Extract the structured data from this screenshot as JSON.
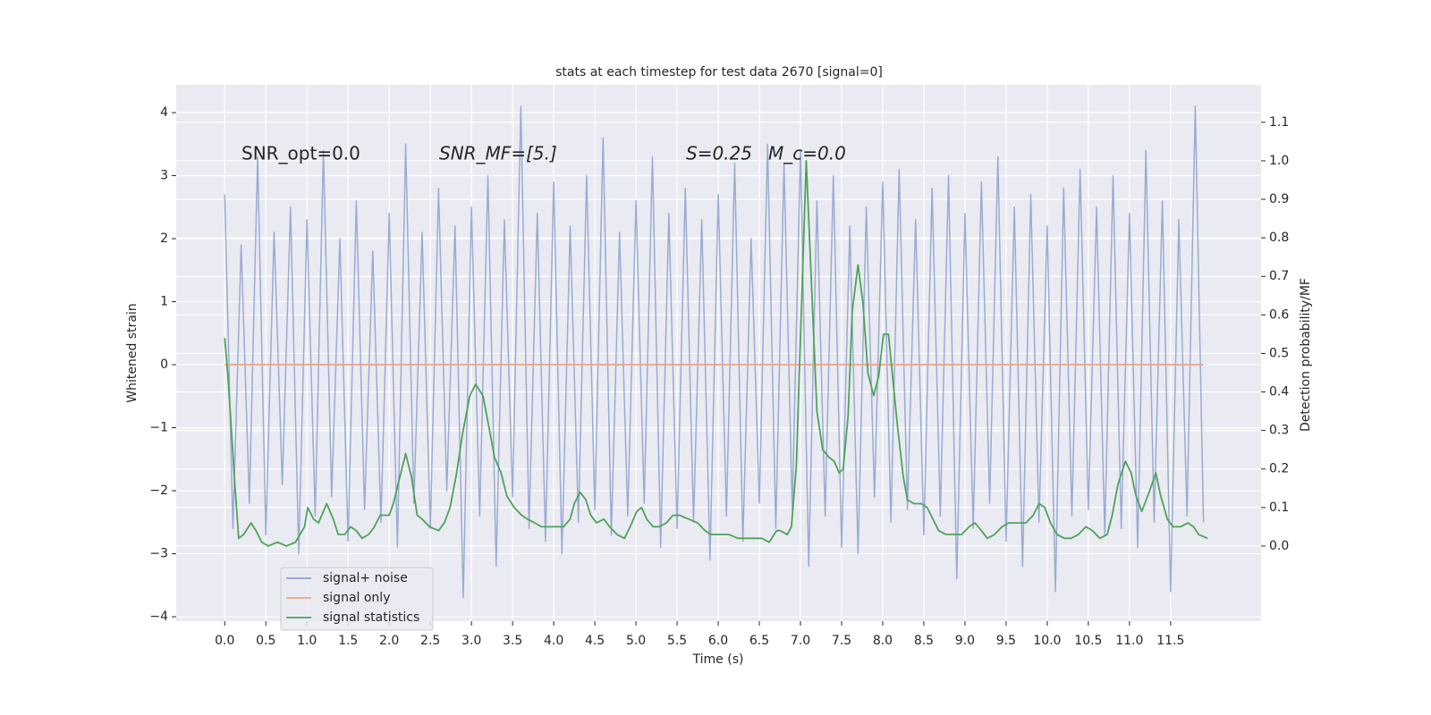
{
  "chart_data": {
    "type": "line",
    "title": "stats at each timestep for test data 2670 [signal=0]",
    "xlabel": "Time (s)",
    "ylabel": "Whitened strain",
    "y2label": "Detection probability/MF",
    "annotations": [
      "SNR_opt=0.0",
      "SNR_MF=[5.]",
      "S=0.25",
      "M_c=0.0"
    ],
    "xlim": [
      -0.59,
      12.6
    ],
    "ylim": [
      -4.07,
      4.44
    ],
    "y2lim": [
      -0.195,
      1.197
    ],
    "xticks": [
      0.0,
      0.5,
      1.0,
      1.5,
      2.0,
      2.5,
      3.0,
      3.5,
      4.0,
      4.5,
      5.0,
      5.5,
      6.0,
      6.5,
      7.0,
      7.5,
      8.0,
      8.5,
      9.0,
      9.5,
      10.0,
      10.5,
      11.0,
      11.5
    ],
    "yticks": [
      -4,
      -3,
      -2,
      -1,
      0,
      1,
      2,
      3,
      4
    ],
    "y2ticks": [
      0.0,
      0.1,
      0.2,
      0.3,
      0.4,
      0.5,
      0.6,
      0.7,
      0.8,
      0.9,
      1.0,
      1.1
    ],
    "grid": true,
    "legend": "lower left",
    "series": [
      {
        "name": "signal+ noise",
        "color": "#8da0cb",
        "x": [
          0.0,
          0.1,
          0.2,
          0.3,
          0.4,
          0.5,
          0.6,
          0.7,
          0.8,
          0.9,
          1.0,
          1.1,
          1.2,
          1.3,
          1.4,
          1.5,
          1.6,
          1.7,
          1.8,
          1.9,
          2.0,
          2.1,
          2.2,
          2.3,
          2.4,
          2.5,
          2.6,
          2.7,
          2.8,
          2.9,
          3.0,
          3.1,
          3.2,
          3.3,
          3.4,
          3.5,
          3.6,
          3.7,
          3.8,
          3.9,
          4.0,
          4.1,
          4.2,
          4.3,
          4.4,
          4.5,
          4.6,
          4.7,
          4.8,
          4.9,
          5.0,
          5.1,
          5.2,
          5.3,
          5.4,
          5.5,
          5.6,
          5.7,
          5.8,
          5.9,
          6.0,
          6.1,
          6.2,
          6.3,
          6.4,
          6.5,
          6.6,
          6.7,
          6.8,
          6.9,
          7.0,
          7.1,
          7.2,
          7.3,
          7.4,
          7.5,
          7.6,
          7.7,
          7.8,
          7.9,
          8.0,
          8.1,
          8.2,
          8.3,
          8.4,
          8.5,
          8.6,
          8.7,
          8.8,
          8.9,
          9.0,
          9.1,
          9.2,
          9.3,
          9.4,
          9.5,
          9.6,
          9.7,
          9.8,
          9.9,
          10.0,
          10.1,
          10.2,
          10.3,
          10.4,
          10.5,
          10.6,
          10.7,
          10.8,
          10.9,
          11.0,
          11.1,
          11.2,
          11.3,
          11.4,
          11.5,
          11.6,
          11.7,
          11.8,
          11.9
        ],
        "values": [
          2.7,
          -2.6,
          1.9,
          -2.2,
          3.3,
          -2.7,
          2.1,
          -1.9,
          2.5,
          -3.0,
          2.3,
          -2.4,
          3.4,
          -2.1,
          2.0,
          -2.8,
          2.6,
          -2.3,
          1.8,
          -2.5,
          2.4,
          -2.9,
          3.5,
          -2.2,
          2.1,
          -2.6,
          2.8,
          -2.0,
          2.2,
          -3.7,
          2.5,
          -2.4,
          3.0,
          -3.2,
          2.3,
          -2.1,
          4.1,
          -2.6,
          2.4,
          -2.8,
          2.9,
          -3.0,
          2.2,
          -2.5,
          3.0,
          -2.3,
          3.6,
          -2.7,
          2.1,
          -2.4,
          2.6,
          -2.2,
          3.3,
          -2.9,
          2.4,
          -2.6,
          2.8,
          -2.5,
          2.3,
          -3.1,
          2.7,
          -2.4,
          3.2,
          -2.8,
          2.0,
          -2.2,
          3.5,
          -2.6,
          3.2,
          -2.3,
          3.4,
          -3.2,
          2.6,
          -2.4,
          3.0,
          -2.9,
          2.2,
          -3.0,
          2.5,
          -2.1,
          2.9,
          -2.5,
          3.1,
          -2.3,
          2.3,
          -2.7,
          2.8,
          -2.4,
          3.0,
          -3.4,
          2.4,
          -2.6,
          2.9,
          -2.2,
          3.3,
          -2.8,
          2.5,
          -3.2,
          2.7,
          -2.5,
          2.2,
          -3.6,
          2.8,
          -2.4,
          3.1,
          -2.3,
          2.5,
          -2.7,
          3.0,
          -2.6,
          2.4,
          -2.9,
          3.4,
          -2.5,
          2.6,
          -3.6,
          2.3,
          -2.4,
          4.1,
          -2.5
        ]
      },
      {
        "name": "signal only",
        "color": "#e9a88a",
        "x": [
          0.0,
          11.9
        ],
        "values": [
          0,
          0
        ]
      },
      {
        "name": "signal statistics",
        "color": "#4ea35a",
        "axis": "y2",
        "x": [
          0.0,
          0.04,
          0.12,
          0.17,
          0.23,
          0.32,
          0.38,
          0.45,
          0.53,
          0.64,
          0.75,
          0.86,
          0.97,
          1.01,
          1.08,
          1.14,
          1.24,
          1.32,
          1.38,
          1.46,
          1.53,
          1.6,
          1.67,
          1.75,
          1.82,
          1.89,
          2.0,
          2.05,
          2.13,
          2.2,
          2.27,
          2.34,
          2.4,
          2.49,
          2.6,
          2.67,
          2.74,
          2.82,
          2.89,
          2.98,
          3.05,
          3.14,
          3.22,
          3.28,
          3.36,
          3.43,
          3.52,
          3.61,
          3.68,
          3.77,
          3.85,
          3.93,
          4.03,
          4.12,
          4.2,
          4.25,
          4.32,
          4.39,
          4.45,
          4.52,
          4.61,
          4.68,
          4.77,
          4.86,
          4.93,
          5.01,
          5.07,
          5.13,
          5.21,
          5.28,
          5.37,
          5.45,
          5.53,
          5.64,
          5.75,
          5.84,
          5.91,
          6.02,
          6.13,
          6.24,
          6.35,
          6.43,
          6.53,
          6.62,
          6.71,
          6.75,
          6.84,
          6.89,
          6.95,
          7.0,
          7.07,
          7.13,
          7.2,
          7.27,
          7.35,
          7.41,
          7.47,
          7.52,
          7.58,
          7.63,
          7.7,
          7.76,
          7.82,
          7.89,
          7.95,
          8.01,
          8.07,
          8.12,
          8.18,
          8.25,
          8.3,
          8.38,
          8.47,
          8.54,
          8.61,
          8.68,
          8.77,
          8.86,
          8.96,
          9.05,
          9.12,
          9.2,
          9.27,
          9.36,
          9.45,
          9.53,
          9.64,
          9.74,
          9.83,
          9.9,
          9.97,
          10.04,
          10.12,
          10.21,
          10.29,
          10.38,
          10.47,
          10.55,
          10.64,
          10.73,
          10.79,
          10.86,
          10.95,
          11.02,
          11.08,
          11.15,
          11.24,
          11.32,
          11.38,
          11.46,
          11.53,
          11.62,
          11.71,
          11.78,
          11.84,
          11.95
        ],
        "values": [
          0.54,
          0.44,
          0.17,
          0.02,
          0.03,
          0.06,
          0.04,
          0.01,
          0.0,
          0.01,
          0.0,
          0.01,
          0.05,
          0.1,
          0.07,
          0.06,
          0.11,
          0.07,
          0.03,
          0.03,
          0.05,
          0.04,
          0.02,
          0.03,
          0.05,
          0.08,
          0.08,
          0.11,
          0.18,
          0.24,
          0.18,
          0.08,
          0.07,
          0.05,
          0.04,
          0.06,
          0.1,
          0.19,
          0.29,
          0.39,
          0.42,
          0.39,
          0.3,
          0.23,
          0.19,
          0.13,
          0.1,
          0.08,
          0.07,
          0.06,
          0.05,
          0.05,
          0.05,
          0.05,
          0.07,
          0.11,
          0.14,
          0.12,
          0.08,
          0.06,
          0.07,
          0.05,
          0.03,
          0.02,
          0.05,
          0.09,
          0.1,
          0.07,
          0.05,
          0.05,
          0.06,
          0.08,
          0.08,
          0.07,
          0.06,
          0.04,
          0.03,
          0.03,
          0.03,
          0.02,
          0.02,
          0.02,
          0.02,
          0.01,
          0.04,
          0.04,
          0.03,
          0.05,
          0.21,
          0.54,
          1.0,
          0.7,
          0.35,
          0.25,
          0.23,
          0.22,
          0.19,
          0.2,
          0.34,
          0.61,
          0.73,
          0.63,
          0.45,
          0.39,
          0.44,
          0.55,
          0.55,
          0.44,
          0.31,
          0.18,
          0.12,
          0.11,
          0.11,
          0.1,
          0.07,
          0.04,
          0.03,
          0.03,
          0.03,
          0.05,
          0.06,
          0.04,
          0.02,
          0.03,
          0.05,
          0.06,
          0.06,
          0.06,
          0.08,
          0.11,
          0.1,
          0.06,
          0.03,
          0.02,
          0.02,
          0.03,
          0.05,
          0.04,
          0.02,
          0.03,
          0.08,
          0.16,
          0.22,
          0.19,
          0.13,
          0.09,
          0.14,
          0.19,
          0.13,
          0.07,
          0.05,
          0.05,
          0.06,
          0.05,
          0.03,
          0.02
        ]
      }
    ]
  }
}
